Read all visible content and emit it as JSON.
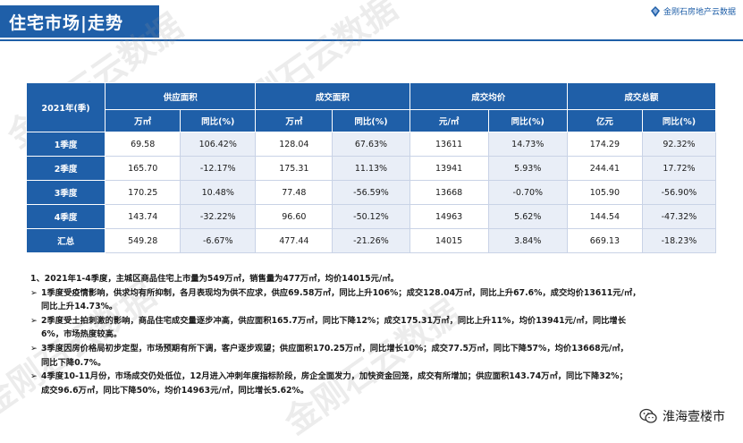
{
  "header": {
    "title": "住宅市场|走势",
    "logo_text": "金刚石房地产云数据"
  },
  "watermark": "金刚石云数据",
  "table": {
    "corner": "2021年(季)",
    "groups": [
      "供应面积",
      "成交面积",
      "成交均价",
      "成交总额"
    ],
    "subheaders": [
      "万㎡",
      "同比(%)",
      "万㎡",
      "同比(%)",
      "元/㎡",
      "同比(%)",
      "亿元",
      "同比(%)"
    ],
    "rows": [
      {
        "label": "1季度",
        "cells": [
          "69.58",
          "106.42%",
          "128.04",
          "67.63%",
          "13611",
          "14.73%",
          "174.29",
          "92.32%"
        ]
      },
      {
        "label": "2季度",
        "cells": [
          "165.70",
          "-12.17%",
          "175.31",
          "11.13%",
          "13941",
          "5.93%",
          "244.41",
          "17.72%"
        ]
      },
      {
        "label": "3季度",
        "cells": [
          "170.25",
          "10.48%",
          "77.48",
          "-56.59%",
          "13668",
          "-0.70%",
          "105.90",
          "-56.90%"
        ]
      },
      {
        "label": "4季度",
        "cells": [
          "143.74",
          "-32.22%",
          "96.60",
          "-50.12%",
          "14963",
          "5.62%",
          "144.54",
          "-47.32%"
        ]
      },
      {
        "label": "汇总",
        "cells": [
          "549.28",
          "-6.67%",
          "477.44",
          "-21.26%",
          "14015",
          "3.84%",
          "669.13",
          "-18.23%"
        ]
      }
    ]
  },
  "notes": {
    "intro": "1、2021年1-4季度，主城区商品住宅上市量为549万㎡，销售量为477万㎡，均价14015元/㎡。",
    "bullet": "➢",
    "items": [
      {
        "line1": "1季度受疫情影响，供求均有所抑制，各月表现均为供不应求，供应69.58万㎡，同比上升106%；成交128.04万㎡，同比上升67.6%，成交均价13611元/㎡，",
        "line2": "同比上升14.73%。"
      },
      {
        "line1": "2季度受土拍刺激的影响，商品住宅成交量逐步冲高，供应面积165.7万㎡，同比下降12%；成交175.31万㎡，同比上升11%，均价13941元/㎡，同比增长",
        "line2": "6%，市场热度较高。"
      },
      {
        "line1": "3季度因房价格局初步定型，市场预期有所下调，客户逐步观望；供应面积170.25万㎡，同比增长10%；成交77.5万㎡，同比下降57%，均价13668元/㎡，",
        "line2": "同比下降0.7%。"
      },
      {
        "line1": "4季度10-11月份，市场成交仍处低位，12月进入冲刺年度指标阶段，房企全面发力，加快资金回笼，成交有所增加；供应面积143.74万㎡，同比下降32%；",
        "line2": "成交96.6万㎡，同比下降50%，均价14963元/㎡，同比增长5.62%。"
      }
    ]
  },
  "brand": {
    "name": "淮海壹楼市",
    "icon": "wechat-icon"
  },
  "colors": {
    "primary": "#1f5fa8",
    "stripe": "#e9eef7"
  }
}
